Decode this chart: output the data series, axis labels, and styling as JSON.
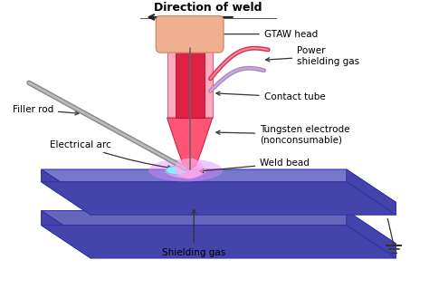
{
  "bg_color": "#ffffff",
  "plate_top_color": "#7777cc",
  "plate_side_color": "#4444aa",
  "plate_top2_color": "#8888cc",
  "torch_outer_color": "#ffaabb",
  "torch_outer_edge": "#dd6688",
  "torch_nozzle_color": "#ff5575",
  "torch_nozzle_edge": "#cc2244",
  "torch_head_color": "#f0b090",
  "torch_head_edge": "#cc8866",
  "contact_tube_color": "#dd2244",
  "contact_tube_edge": "#aa0022",
  "electrode_color": "#666666",
  "hose1_color": "#cc3355",
  "hose1_light": "#ff8899",
  "hose2_color": "#aa88bb",
  "hose2_light": "#ccaadd",
  "filler_color": "#888888",
  "filler_light": "#bbbbbb",
  "arc_glow1": "#ffaaee",
  "arc_glow2": "#ee88cc",
  "weld_bead_color": "#88eeff",
  "weld_bead_edge": "#55ccdd",
  "ground_color": "#333333",
  "label_color": "#000000",
  "arrow_color": "#333333",
  "labels": {
    "direction": "Direction of weld",
    "gtaw_head": "GTAW head",
    "power_shielding": "Power\nshielding gas",
    "contact_tube": "Contact tube",
    "tungsten": "Tungsten electrode\n(nonconsumable)",
    "weld_bead": "Weld bead",
    "shielding_gas": "Shielding gas",
    "electrical_arc": "Electrical arc",
    "filler_rod": "Filler rod"
  }
}
